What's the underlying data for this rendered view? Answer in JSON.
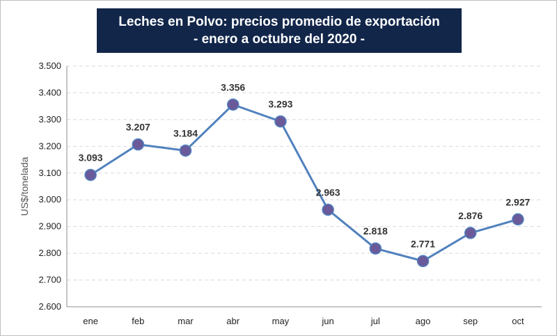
{
  "chart_data": {
    "type": "line",
    "title": "Leches en Polvo: precios promedio de exportación",
    "subtitle": "- enero a octubre del 2020 -",
    "xlabel": "",
    "ylabel": "US$/tonelada",
    "categories": [
      "ene",
      "feb",
      "mar",
      "abr",
      "may",
      "jun",
      "jul",
      "ago",
      "sep",
      "oct"
    ],
    "values": [
      3093,
      3207,
      3184,
      3356,
      3293,
      2963,
      2818,
      2771,
      2876,
      2927
    ],
    "data_labels": [
      "3.093",
      "3.207",
      "3.184",
      "3.356",
      "3.293",
      "2.963",
      "2.818",
      "2.771",
      "2.876",
      "2.927"
    ],
    "ylim": [
      2600,
      3500
    ],
    "yticks": [
      2600,
      2700,
      2800,
      2900,
      3000,
      3100,
      3200,
      3300,
      3400,
      3500
    ],
    "ytick_labels": [
      "2.600",
      "2.700",
      "2.800",
      "2.900",
      "3.000",
      "3.100",
      "3.200",
      "3.300",
      "3.400",
      "3.500"
    ],
    "grid": true,
    "legend": "none",
    "colors": {
      "line": "#4f81bd",
      "marker": "#6a5a9a",
      "marker_edge": "#4f81bd",
      "gridline": "#d9d9d9",
      "title_bg": "#12264a"
    }
  }
}
